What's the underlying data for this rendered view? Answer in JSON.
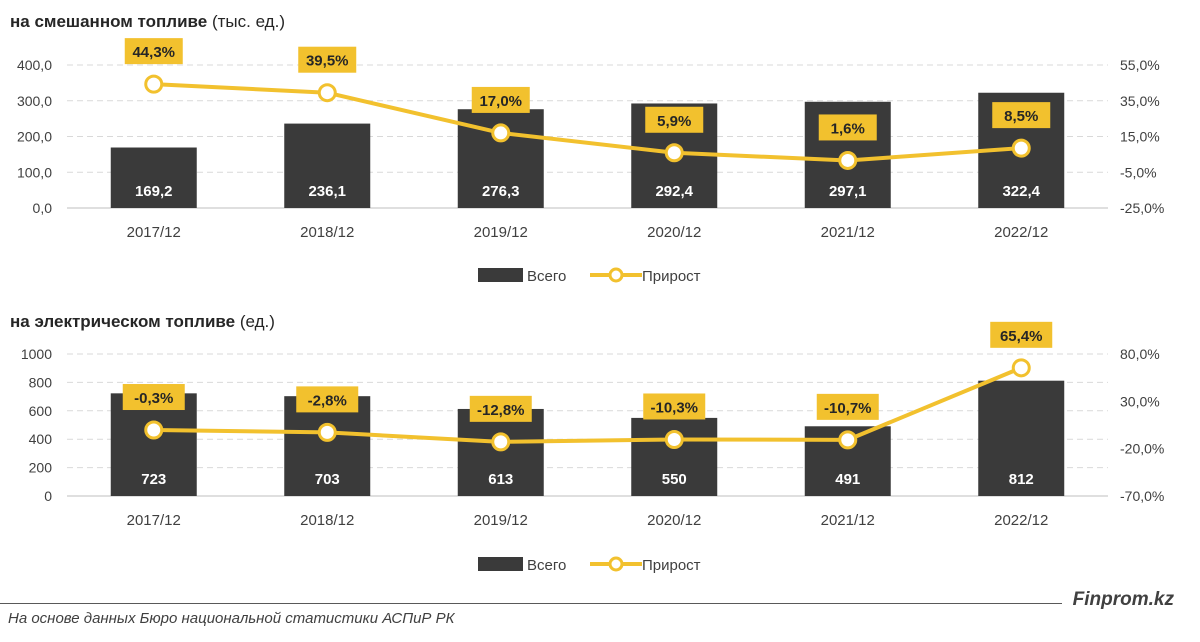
{
  "chart_data": [
    {
      "type": "bar",
      "title_bold": "на смешанном топливе",
      "title_normal": "(тыс. ед.)",
      "categories": [
        "2017/12",
        "2018/12",
        "2019/12",
        "2020/12",
        "2021/12",
        "2022/12"
      ],
      "series": [
        {
          "name": "Всего",
          "type": "bar",
          "axis": "left",
          "values": [
            169.2,
            236.1,
            276.3,
            292.4,
            297.1,
            322.4
          ],
          "labels": [
            "169,2",
            "236,1",
            "276,3",
            "292,4",
            "297,1",
            "322,4"
          ]
        },
        {
          "name": "Прирост",
          "type": "line",
          "axis": "right",
          "values": [
            44.3,
            39.5,
            17.0,
            5.9,
            1.6,
            8.5
          ],
          "labels": [
            "44,3%",
            "39,5%",
            "17,0%",
            "5,9%",
            "1,6%",
            "8,5%"
          ]
        }
      ],
      "ylim": [
        0,
        400
      ],
      "y_ticks": [
        0,
        100,
        200,
        300,
        400
      ],
      "y_tick_labels": [
        "0,0",
        "100,0",
        "200,0",
        "300,0",
        "400,0"
      ],
      "y2lim": [
        -25,
        55
      ],
      "y2_ticks": [
        -25,
        -5,
        15,
        35,
        55
      ],
      "y2_tick_labels": [
        "-25,0%",
        "-5,0%",
        "15,0%",
        "35,0%",
        "55,0%"
      ],
      "grid": true,
      "legend": "bottom-center"
    },
    {
      "type": "bar",
      "title_bold": "на электрическом топливе",
      "title_normal": "(ед.)",
      "categories": [
        "2017/12",
        "2018/12",
        "2019/12",
        "2020/12",
        "2021/12",
        "2022/12"
      ],
      "series": [
        {
          "name": "Всего",
          "type": "bar",
          "axis": "left",
          "values": [
            723,
            703,
            613,
            550,
            491,
            812
          ],
          "labels": [
            "723",
            "703",
            "613",
            "550",
            "491",
            "812"
          ]
        },
        {
          "name": "Прирост",
          "type": "line",
          "axis": "right",
          "values": [
            -0.3,
            -2.8,
            -12.8,
            -10.3,
            -10.7,
            65.4
          ],
          "labels": [
            "-0,3%",
            "-2,8%",
            "-12,8%",
            "-10,3%",
            "-10,7%",
            "65,4%"
          ]
        }
      ],
      "ylim": [
        0,
        1000
      ],
      "y_ticks": [
        0,
        200,
        400,
        600,
        800,
        1000
      ],
      "y_tick_labels": [
        "0",
        "200",
        "400",
        "600",
        "800",
        "1000"
      ],
      "y2lim": [
        -70,
        80
      ],
      "y2_ticks": [
        -70,
        -20,
        30,
        80
      ],
      "y2_tick_labels": [
        "-70,0%",
        "-20,0%",
        "30,0%",
        "80,0%"
      ],
      "grid": true,
      "legend": "bottom-center"
    }
  ],
  "colors": {
    "bar": "#3a3a3a",
    "line": "#f2c12e",
    "label_box": "#f2c12e",
    "grid": "#d9d9d9"
  },
  "footer": {
    "source": "На основе данных Бюро национальной статистики АСПиР РК",
    "brand": "Finprom.kz"
  }
}
